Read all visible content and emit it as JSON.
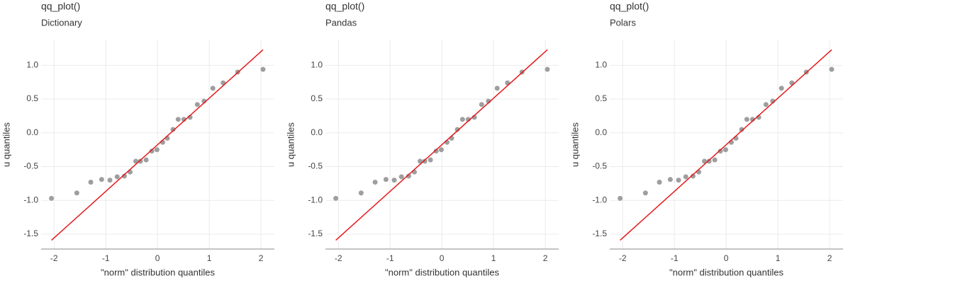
{
  "chart_data": [
    {
      "type": "scatter",
      "title": "qq_plot()",
      "subtitle": "Dictionary",
      "x_label": "\"norm\" distribution quantiles",
      "y_label": "u quantiles",
      "xlim": [
        -2.25,
        2.26
      ],
      "ylim": [
        -1.72,
        1.37
      ],
      "xticks": [
        -2,
        -1,
        0,
        1,
        2
      ],
      "yticks": [
        {
          "value": 1,
          "label": "1.0"
        },
        0.5,
        {
          "value": 0,
          "label": "0.0"
        },
        -0.5,
        {
          "value": -1,
          "label": "-1.0"
        },
        -1.5
      ],
      "grid": true,
      "series": [
        {
          "type": "scatter",
          "color": "#9e9e9e",
          "x": [
            -2.05,
            -1.56,
            -1.29,
            -1.08,
            -0.92,
            -0.78,
            -0.64,
            -0.53,
            -0.42,
            -0.33,
            -0.22,
            -0.11,
            -0.01,
            0.1,
            0.19,
            0.3,
            0.4,
            0.51,
            0.63,
            0.77,
            0.9,
            1.07,
            1.27,
            1.55,
            2.04
          ],
          "values": [
            -0.97,
            -0.89,
            -0.73,
            -0.69,
            -0.7,
            -0.65,
            -0.64,
            -0.58,
            -0.42,
            -0.42,
            -0.4,
            -0.27,
            -0.25,
            -0.14,
            -0.08,
            0.05,
            0.2,
            0.2,
            0.23,
            0.42,
            0.47,
            0.66,
            0.74,
            0.9,
            0.94
          ]
        },
        {
          "type": "line",
          "color": "#e31a1c",
          "x": [
            -2.05,
            2.04
          ],
          "values": [
            -1.59,
            1.23
          ]
        }
      ]
    },
    {
      "type": "scatter",
      "title": "qq_plot()",
      "subtitle": "Pandas",
      "x_label": "\"norm\" distribution quantiles",
      "y_label": "u quantiles",
      "xlim": [
        -2.25,
        2.26
      ],
      "ylim": [
        -1.72,
        1.37
      ],
      "xticks": [
        -2,
        -1,
        0,
        1,
        2
      ],
      "yticks": [
        {
          "value": 1,
          "label": "1.0"
        },
        0.5,
        {
          "value": 0,
          "label": "0.0"
        },
        -0.5,
        {
          "value": -1,
          "label": "-1.0"
        },
        -1.5
      ],
      "grid": true,
      "series": [
        {
          "type": "scatter",
          "color": "#9e9e9e",
          "x": [
            -2.05,
            -1.56,
            -1.29,
            -1.08,
            -0.92,
            -0.78,
            -0.64,
            -0.53,
            -0.42,
            -0.33,
            -0.22,
            -0.11,
            -0.01,
            0.1,
            0.19,
            0.3,
            0.4,
            0.51,
            0.63,
            0.77,
            0.9,
            1.07,
            1.27,
            1.55,
            2.04
          ],
          "values": [
            -0.97,
            -0.89,
            -0.73,
            -0.69,
            -0.7,
            -0.65,
            -0.64,
            -0.58,
            -0.42,
            -0.42,
            -0.4,
            -0.27,
            -0.25,
            -0.14,
            -0.08,
            0.05,
            0.2,
            0.2,
            0.23,
            0.42,
            0.47,
            0.66,
            0.74,
            0.9,
            0.94
          ]
        },
        {
          "type": "line",
          "color": "#e31a1c",
          "x": [
            -2.05,
            2.04
          ],
          "values": [
            -1.59,
            1.23
          ]
        }
      ]
    },
    {
      "type": "scatter",
      "title": "qq_plot()",
      "subtitle": "Polars",
      "x_label": "\"norm\" distribution quantiles",
      "y_label": "u quantiles",
      "xlim": [
        -2.25,
        2.26
      ],
      "ylim": [
        -1.72,
        1.37
      ],
      "xticks": [
        -2,
        -1,
        0,
        1,
        2
      ],
      "yticks": [
        {
          "value": 1,
          "label": "1.0"
        },
        0.5,
        {
          "value": 0,
          "label": "0.0"
        },
        -0.5,
        {
          "value": -1,
          "label": "-1.0"
        },
        -1.5
      ],
      "grid": true,
      "series": [
        {
          "type": "scatter",
          "color": "#9e9e9e",
          "x": [
            -2.05,
            -1.56,
            -1.29,
            -1.08,
            -0.92,
            -0.78,
            -0.64,
            -0.53,
            -0.42,
            -0.33,
            -0.22,
            -0.11,
            -0.01,
            0.1,
            0.19,
            0.3,
            0.4,
            0.51,
            0.63,
            0.77,
            0.9,
            1.07,
            1.27,
            1.55,
            2.04
          ],
          "values": [
            -0.97,
            -0.89,
            -0.73,
            -0.69,
            -0.7,
            -0.65,
            -0.64,
            -0.58,
            -0.42,
            -0.42,
            -0.4,
            -0.27,
            -0.25,
            -0.14,
            -0.08,
            0.05,
            0.2,
            0.2,
            0.23,
            0.42,
            0.47,
            0.66,
            0.74,
            0.9,
            0.94
          ]
        },
        {
          "type": "line",
          "color": "#e31a1c",
          "x": [
            -2.05,
            2.04
          ],
          "values": [
            -1.59,
            1.23
          ]
        }
      ]
    }
  ]
}
